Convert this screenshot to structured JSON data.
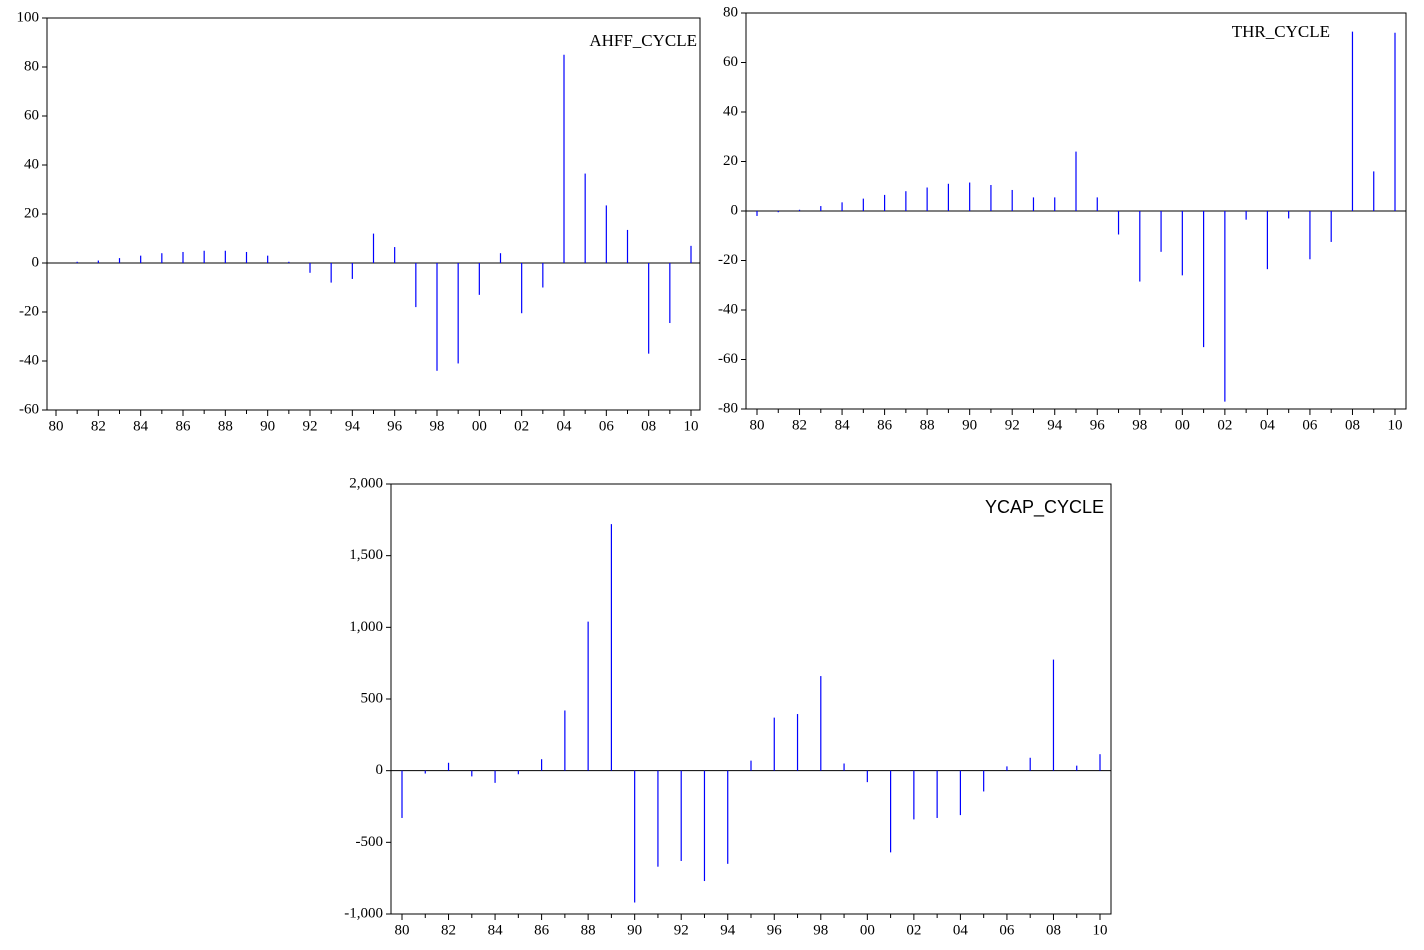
{
  "chart_data": [
    {
      "type": "bar",
      "title": "AHFF_CYCLE",
      "color": "#0000ff",
      "categories": [
        "80",
        null,
        "82",
        null,
        "84",
        null,
        "86",
        null,
        "88",
        null,
        "90",
        null,
        "92",
        null,
        "94",
        null,
        "96",
        null,
        "98",
        null,
        "00",
        null,
        "02",
        null,
        "04",
        null,
        "06",
        null,
        "08",
        null,
        "10"
      ],
      "values": [
        0,
        0.5,
        1,
        2,
        3,
        4,
        4.5,
        5,
        5,
        4.5,
        3,
        0.5,
        -4,
        -8,
        -6.5,
        12,
        6.5,
        -18,
        -44,
        -41,
        -13,
        4,
        -20.5,
        -10,
        85,
        36.5,
        23.5,
        13.5,
        -37,
        -24.5,
        7
      ],
      "ylim": [
        -60,
        100
      ],
      "yticks": [
        -60,
        -40,
        -20,
        0,
        20,
        40,
        60,
        80,
        100
      ]
    },
    {
      "type": "bar",
      "title": "THR_CYCLE",
      "color": "#0000ff",
      "categories": [
        "80",
        null,
        "82",
        null,
        "84",
        null,
        "86",
        null,
        "88",
        null,
        "90",
        null,
        "92",
        null,
        "94",
        null,
        "96",
        null,
        "98",
        null,
        "00",
        null,
        "02",
        null,
        "04",
        null,
        "06",
        null,
        "08",
        null,
        "10"
      ],
      "values": [
        -2,
        -0.5,
        0.5,
        2,
        3.5,
        5,
        6.5,
        8,
        9.5,
        11,
        11.5,
        10.5,
        8.5,
        5.5,
        5.5,
        24,
        5.5,
        -9.5,
        -28.5,
        -16.5,
        -26,
        -55,
        -77,
        -3.5,
        -23.5,
        -3,
        -19.5,
        -12.5,
        72.5,
        16,
        72
      ],
      "ylim": [
        -80,
        80
      ],
      "yticks": [
        -80,
        -60,
        -40,
        -20,
        0,
        20,
        40,
        60,
        80
      ]
    },
    {
      "type": "bar",
      "title": "YCAP_CYCLE",
      "color": "#0000ff",
      "categories": [
        "80",
        null,
        "82",
        null,
        "84",
        null,
        "86",
        null,
        "88",
        null,
        "90",
        null,
        "92",
        null,
        "94",
        null,
        "96",
        null,
        "98",
        null,
        "00",
        null,
        "02",
        null,
        "04",
        null,
        "06",
        null,
        "08",
        null,
        "10"
      ],
      "values": [
        -330,
        -20,
        55,
        -40,
        -85,
        -25,
        80,
        420,
        1040,
        1720,
        -920,
        -670,
        -630,
        -770,
        -650,
        70,
        370,
        395,
        660,
        50,
        -80,
        -570,
        -340,
        -330,
        -310,
        -145,
        30,
        90,
        775,
        35,
        115
      ],
      "ylim": [
        -1000,
        2000
      ],
      "yticks": [
        {
          "value": -1000,
          "label": "-1,000"
        },
        -500,
        0,
        500,
        {
          "value": 1000,
          "label": "1,000"
        },
        {
          "value": 1500,
          "label": "1,500"
        },
        {
          "value": 2000,
          "label": "2,000"
        }
      ]
    }
  ]
}
